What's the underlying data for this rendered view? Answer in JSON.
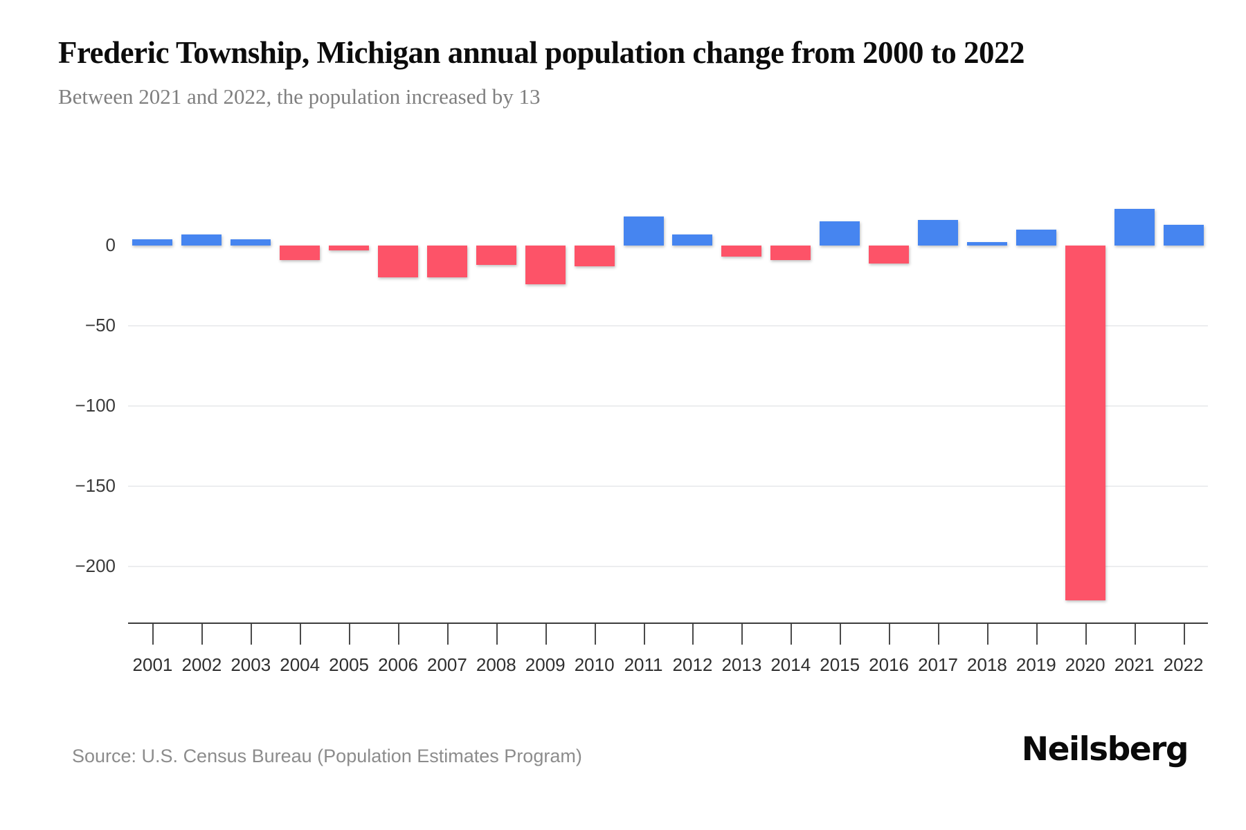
{
  "page": {
    "source": "Source: U.S. Census Bureau (Population Estimates Program)",
    "brand": "Neilsberg"
  },
  "colors": {
    "positive_bar": "#4685F0",
    "negative_bar": "#FD5368",
    "gridline": "#ECEDEF",
    "axis_line": "#3c3c3c",
    "tick_mark": "#4a4a4a",
    "axis_label": "#3a3a3a",
    "title_text": "#0c0c0c",
    "subtitle_text": "#7f7f7f",
    "source_text": "#8c8c8c"
  },
  "chart_data": {
    "type": "bar",
    "title": "Frederic Township, Michigan annual population change from 2000 to 2022",
    "subtitle": "Between 2021 and 2022, the population increased by 13",
    "xlabel": "",
    "ylabel": "",
    "categories": [
      "2001",
      "2002",
      "2003",
      "2004",
      "2005",
      "2006",
      "2007",
      "2008",
      "2009",
      "2010",
      "2011",
      "2012",
      "2013",
      "2014",
      "2015",
      "2016",
      "2017",
      "2018",
      "2019",
      "2020",
      "2021",
      "2022"
    ],
    "values": [
      4,
      7,
      4,
      -9,
      -3,
      -20,
      -20,
      -12,
      -24,
      -13,
      18,
      7,
      -7,
      -9,
      15,
      -11,
      16,
      2,
      10,
      -221,
      23,
      13
    ],
    "y_ticks": [
      0,
      -50,
      -100,
      -150,
      -200
    ],
    "y_tick_labels": [
      "0",
      "−50",
      "−100",
      "−150",
      "−200"
    ],
    "ylim": [
      -235,
      65
    ],
    "grid": true,
    "legend": false,
    "positive_color": "#4685F0",
    "negative_color": "#FD5368"
  }
}
